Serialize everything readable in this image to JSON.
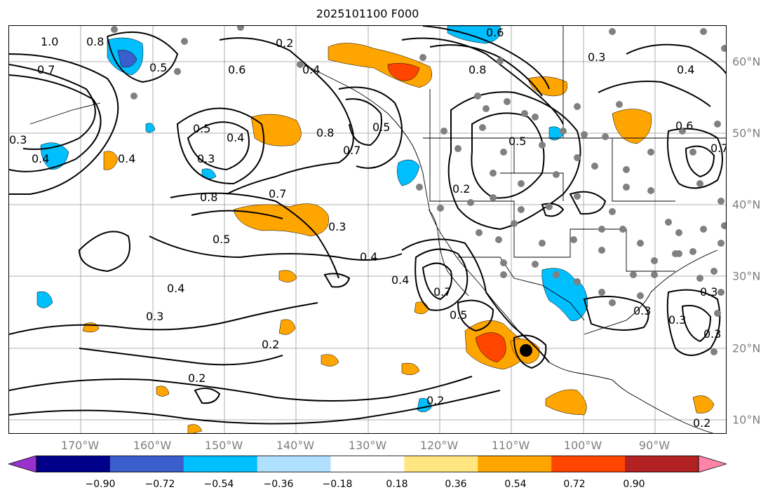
{
  "title": "2025101100 F000",
  "lon_labels": [
    "170°W",
    "160°W",
    "150°W",
    "140°W",
    "130°W",
    "120°W",
    "110°W",
    "100°W",
    "90°W"
  ],
  "lat_labels": [
    "60°N",
    "50°N",
    "40°N",
    "30°N",
    "20°N",
    "10°N"
  ],
  "contour_labels": [
    "1.0",
    "0.8",
    "0.7",
    "0.5",
    "0.6",
    "0.2",
    "0.3",
    "0.4",
    "0.4",
    "0.3",
    "0.5",
    "0.4",
    "0.8",
    "0.7",
    "0.8",
    "0.5",
    "0.7",
    "0.3",
    "0.5",
    "0.4",
    "0.4",
    "0.3",
    "0.2",
    "0.2",
    "0.6",
    "0.8",
    "0.3",
    "0.4",
    "0.6",
    "0.7",
    "0.5",
    "0.2",
    "0.4",
    "0.7",
    "0.5",
    "0.3",
    "0.3",
    "0.4",
    "0.3",
    "0.2",
    "0.2",
    "0.3"
  ],
  "colorbar": {
    "ticks": [
      "−0.90",
      "−0.72",
      "−0.54",
      "−0.36",
      "−0.18",
      "0.18",
      "0.36",
      "0.54",
      "0.72",
      "0.90"
    ],
    "colors": [
      "#9932cc",
      "#00008b",
      "#3a5fcd",
      "#00bfff",
      "#afe1ff",
      "#ffffff",
      "#ffe680",
      "#ffa500",
      "#ff4500",
      "#b22222",
      "#ff85a8"
    ]
  },
  "marker": "storm-center"
}
